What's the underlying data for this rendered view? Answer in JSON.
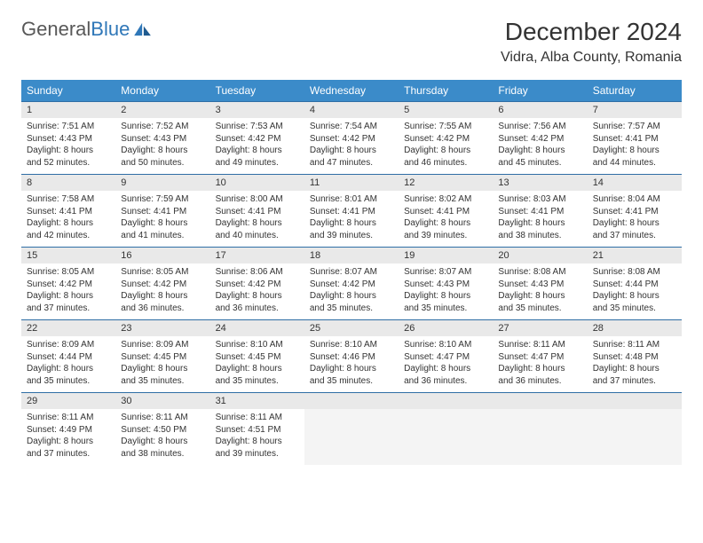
{
  "logo": {
    "text1": "General",
    "text2": "Blue",
    "icon_color": "#2f77b8"
  },
  "title": "December 2024",
  "subtitle": "Vidra, Alba County, Romania",
  "header_bg": "#3b8bc9",
  "daynum_bg": "#e9e9e9",
  "border_color": "#2f6ea5",
  "weekdays": [
    "Sunday",
    "Monday",
    "Tuesday",
    "Wednesday",
    "Thursday",
    "Friday",
    "Saturday"
  ],
  "weeks": [
    {
      "nums": [
        "1",
        "2",
        "3",
        "4",
        "5",
        "6",
        "7"
      ],
      "cells": [
        {
          "sunrise": "Sunrise: 7:51 AM",
          "sunset": "Sunset: 4:43 PM",
          "day1": "Daylight: 8 hours",
          "day2": "and 52 minutes."
        },
        {
          "sunrise": "Sunrise: 7:52 AM",
          "sunset": "Sunset: 4:43 PM",
          "day1": "Daylight: 8 hours",
          "day2": "and 50 minutes."
        },
        {
          "sunrise": "Sunrise: 7:53 AM",
          "sunset": "Sunset: 4:42 PM",
          "day1": "Daylight: 8 hours",
          "day2": "and 49 minutes."
        },
        {
          "sunrise": "Sunrise: 7:54 AM",
          "sunset": "Sunset: 4:42 PM",
          "day1": "Daylight: 8 hours",
          "day2": "and 47 minutes."
        },
        {
          "sunrise": "Sunrise: 7:55 AM",
          "sunset": "Sunset: 4:42 PM",
          "day1": "Daylight: 8 hours",
          "day2": "and 46 minutes."
        },
        {
          "sunrise": "Sunrise: 7:56 AM",
          "sunset": "Sunset: 4:42 PM",
          "day1": "Daylight: 8 hours",
          "day2": "and 45 minutes."
        },
        {
          "sunrise": "Sunrise: 7:57 AM",
          "sunset": "Sunset: 4:41 PM",
          "day1": "Daylight: 8 hours",
          "day2": "and 44 minutes."
        }
      ]
    },
    {
      "nums": [
        "8",
        "9",
        "10",
        "11",
        "12",
        "13",
        "14"
      ],
      "cells": [
        {
          "sunrise": "Sunrise: 7:58 AM",
          "sunset": "Sunset: 4:41 PM",
          "day1": "Daylight: 8 hours",
          "day2": "and 42 minutes."
        },
        {
          "sunrise": "Sunrise: 7:59 AM",
          "sunset": "Sunset: 4:41 PM",
          "day1": "Daylight: 8 hours",
          "day2": "and 41 minutes."
        },
        {
          "sunrise": "Sunrise: 8:00 AM",
          "sunset": "Sunset: 4:41 PM",
          "day1": "Daylight: 8 hours",
          "day2": "and 40 minutes."
        },
        {
          "sunrise": "Sunrise: 8:01 AM",
          "sunset": "Sunset: 4:41 PM",
          "day1": "Daylight: 8 hours",
          "day2": "and 39 minutes."
        },
        {
          "sunrise": "Sunrise: 8:02 AM",
          "sunset": "Sunset: 4:41 PM",
          "day1": "Daylight: 8 hours",
          "day2": "and 39 minutes."
        },
        {
          "sunrise": "Sunrise: 8:03 AM",
          "sunset": "Sunset: 4:41 PM",
          "day1": "Daylight: 8 hours",
          "day2": "and 38 minutes."
        },
        {
          "sunrise": "Sunrise: 8:04 AM",
          "sunset": "Sunset: 4:41 PM",
          "day1": "Daylight: 8 hours",
          "day2": "and 37 minutes."
        }
      ]
    },
    {
      "nums": [
        "15",
        "16",
        "17",
        "18",
        "19",
        "20",
        "21"
      ],
      "cells": [
        {
          "sunrise": "Sunrise: 8:05 AM",
          "sunset": "Sunset: 4:42 PM",
          "day1": "Daylight: 8 hours",
          "day2": "and 37 minutes."
        },
        {
          "sunrise": "Sunrise: 8:05 AM",
          "sunset": "Sunset: 4:42 PM",
          "day1": "Daylight: 8 hours",
          "day2": "and 36 minutes."
        },
        {
          "sunrise": "Sunrise: 8:06 AM",
          "sunset": "Sunset: 4:42 PM",
          "day1": "Daylight: 8 hours",
          "day2": "and 36 minutes."
        },
        {
          "sunrise": "Sunrise: 8:07 AM",
          "sunset": "Sunset: 4:42 PM",
          "day1": "Daylight: 8 hours",
          "day2": "and 35 minutes."
        },
        {
          "sunrise": "Sunrise: 8:07 AM",
          "sunset": "Sunset: 4:43 PM",
          "day1": "Daylight: 8 hours",
          "day2": "and 35 minutes."
        },
        {
          "sunrise": "Sunrise: 8:08 AM",
          "sunset": "Sunset: 4:43 PM",
          "day1": "Daylight: 8 hours",
          "day2": "and 35 minutes."
        },
        {
          "sunrise": "Sunrise: 8:08 AM",
          "sunset": "Sunset: 4:44 PM",
          "day1": "Daylight: 8 hours",
          "day2": "and 35 minutes."
        }
      ]
    },
    {
      "nums": [
        "22",
        "23",
        "24",
        "25",
        "26",
        "27",
        "28"
      ],
      "cells": [
        {
          "sunrise": "Sunrise: 8:09 AM",
          "sunset": "Sunset: 4:44 PM",
          "day1": "Daylight: 8 hours",
          "day2": "and 35 minutes."
        },
        {
          "sunrise": "Sunrise: 8:09 AM",
          "sunset": "Sunset: 4:45 PM",
          "day1": "Daylight: 8 hours",
          "day2": "and 35 minutes."
        },
        {
          "sunrise": "Sunrise: 8:10 AM",
          "sunset": "Sunset: 4:45 PM",
          "day1": "Daylight: 8 hours",
          "day2": "and 35 minutes."
        },
        {
          "sunrise": "Sunrise: 8:10 AM",
          "sunset": "Sunset: 4:46 PM",
          "day1": "Daylight: 8 hours",
          "day2": "and 35 minutes."
        },
        {
          "sunrise": "Sunrise: 8:10 AM",
          "sunset": "Sunset: 4:47 PM",
          "day1": "Daylight: 8 hours",
          "day2": "and 36 minutes."
        },
        {
          "sunrise": "Sunrise: 8:11 AM",
          "sunset": "Sunset: 4:47 PM",
          "day1": "Daylight: 8 hours",
          "day2": "and 36 minutes."
        },
        {
          "sunrise": "Sunrise: 8:11 AM",
          "sunset": "Sunset: 4:48 PM",
          "day1": "Daylight: 8 hours",
          "day2": "and 37 minutes."
        }
      ]
    },
    {
      "nums": [
        "29",
        "30",
        "31",
        "",
        "",
        "",
        ""
      ],
      "cells": [
        {
          "sunrise": "Sunrise: 8:11 AM",
          "sunset": "Sunset: 4:49 PM",
          "day1": "Daylight: 8 hours",
          "day2": "and 37 minutes."
        },
        {
          "sunrise": "Sunrise: 8:11 AM",
          "sunset": "Sunset: 4:50 PM",
          "day1": "Daylight: 8 hours",
          "day2": "and 38 minutes."
        },
        {
          "sunrise": "Sunrise: 8:11 AM",
          "sunset": "Sunset: 4:51 PM",
          "day1": "Daylight: 8 hours",
          "day2": "and 39 minutes."
        },
        null,
        null,
        null,
        null
      ]
    }
  ]
}
